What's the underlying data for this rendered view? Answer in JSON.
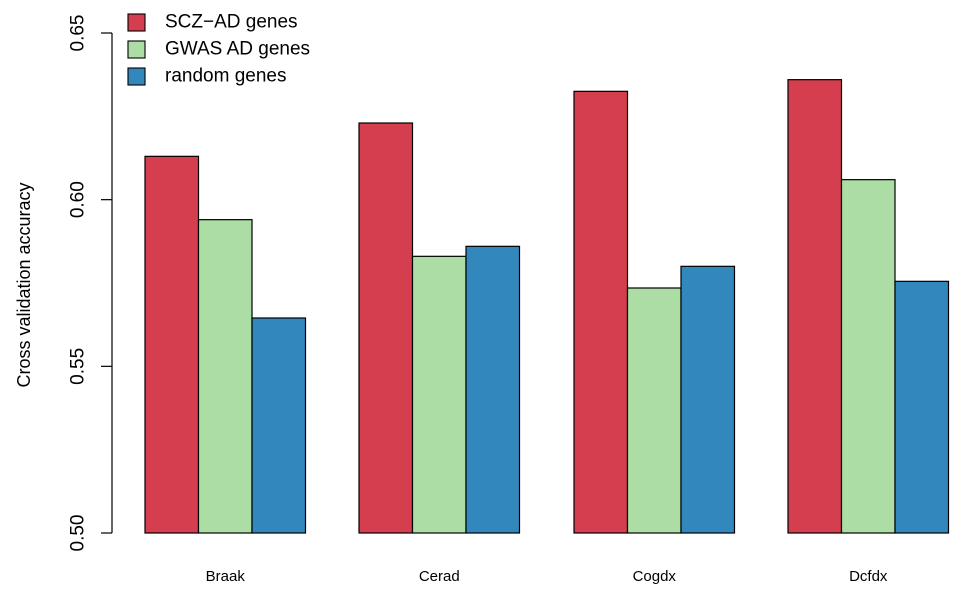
{
  "chart_data": {
    "type": "bar",
    "categories": [
      "Braak",
      "Cerad",
      "Cogdx",
      "Dcfdx"
    ],
    "series": [
      {
        "name": "SCZ−AD genes",
        "color": "#d53e4f",
        "values": [
          0.613,
          0.623,
          0.6325,
          0.636
        ]
      },
      {
        "name": "GWAS AD genes",
        "color": "#abdda4",
        "values": [
          0.594,
          0.583,
          0.5735,
          0.606
        ]
      },
      {
        "name": "random genes",
        "color": "#3288bd",
        "values": [
          0.5645,
          0.586,
          0.58,
          0.5755
        ]
      }
    ],
    "xlabel": "",
    "ylabel": "Cross validation accuracy",
    "ylim": [
      0.5,
      0.65
    ],
    "yticks": [
      "0.50",
      "0.55",
      "0.60",
      "0.65"
    ],
    "ytick_values": [
      0.5,
      0.55,
      0.6,
      0.65
    ],
    "legend_position": "top-left",
    "grid": false
  }
}
